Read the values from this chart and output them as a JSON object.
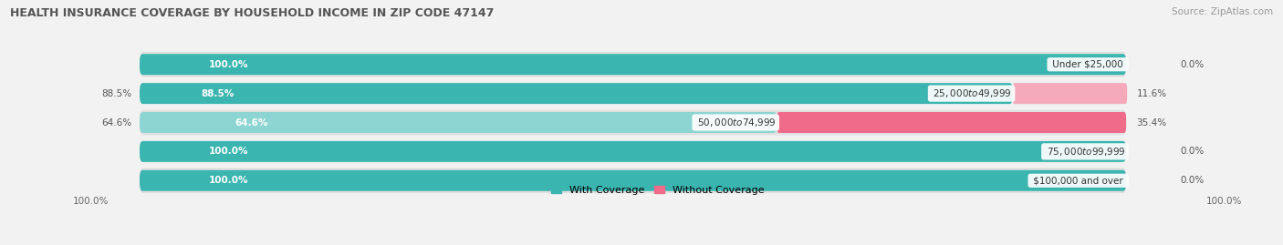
{
  "title": "HEALTH INSURANCE COVERAGE BY HOUSEHOLD INCOME IN ZIP CODE 47147",
  "source": "Source: ZipAtlas.com",
  "categories": [
    "Under $25,000",
    "$25,000 to $49,999",
    "$50,000 to $74,999",
    "$75,000 to $99,999",
    "$100,000 and over"
  ],
  "with_coverage": [
    100.0,
    88.5,
    64.6,
    100.0,
    100.0
  ],
  "without_coverage": [
    0.0,
    11.6,
    35.4,
    0.0,
    0.0
  ],
  "color_with": "#3ab5b0",
  "color_with_light": "#8dd5d2",
  "color_without": "#f06a8a",
  "color_without_light": "#f5aabb",
  "color_bg_pill": "#e8e8e8",
  "color_row_dark": "#e0e0e0",
  "color_row_light": "#efefef",
  "legend_with": "With Coverage",
  "legend_without": "Without Coverage",
  "x_left_label": "100.0%",
  "x_right_label": "100.0%",
  "figsize": [
    14.06,
    2.69
  ],
  "dpi": 100
}
